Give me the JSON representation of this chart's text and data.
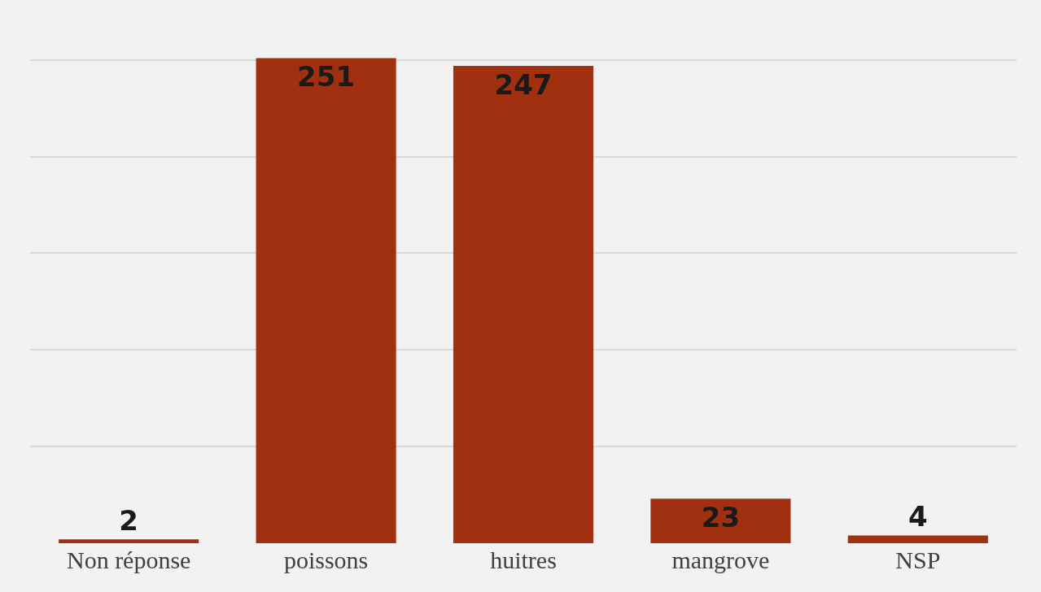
{
  "chart_data": {
    "type": "bar",
    "categories": [
      "Non réponse",
      "poissons",
      "huitres",
      "mangrove",
      "NSP"
    ],
    "values": [
      2,
      251,
      247,
      23,
      4
    ],
    "color": "#a0300f",
    "grid": "y",
    "tick_labels": "x",
    "data_labels": true
  }
}
